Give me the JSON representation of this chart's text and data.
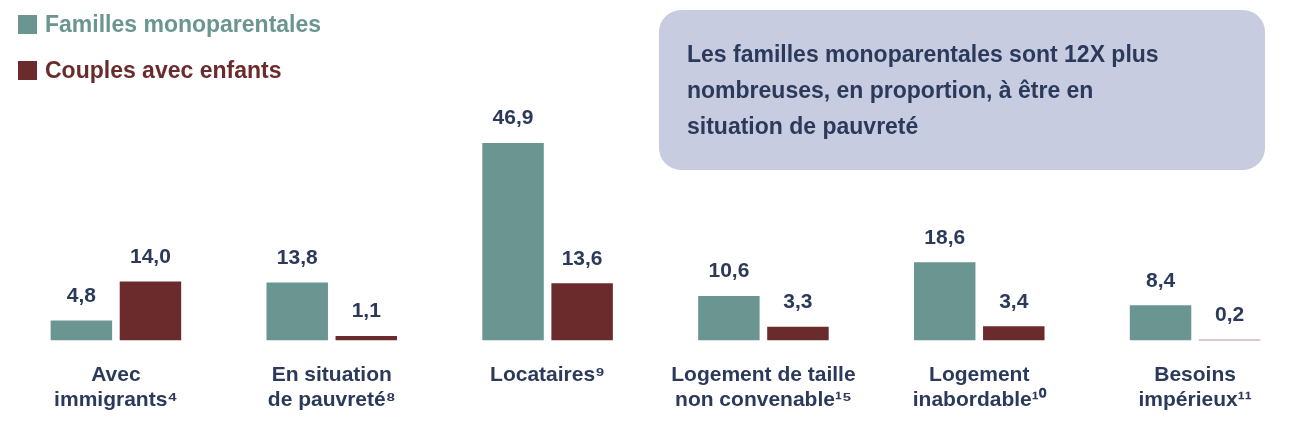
{
  "chart_data": {
    "type": "bar",
    "categories": [
      "Avec\nimmigrants⁴",
      "En situation\nde pauvreté⁸",
      "Locataires⁹",
      "Logement de taille\nnon convenable¹⁵",
      "Logement\ninabordable¹⁰",
      "Besoins\nimpérieux¹¹"
    ],
    "series": [
      {
        "name": "Familles monoparentales",
        "color": "#6a9590",
        "values": [
          4.8,
          13.8,
          46.9,
          10.6,
          18.6,
          8.4
        ],
        "value_labels": [
          "4,8",
          "13,8",
          "46,9",
          "10,6",
          "18,6",
          "8,4"
        ]
      },
      {
        "name": "Couples avec enfants",
        "color": "#6b2b2d",
        "values": [
          14.0,
          1.1,
          13.6,
          3.3,
          3.4,
          0.2
        ],
        "value_labels": [
          "14,0",
          "1,1",
          "13,6",
          "3,3",
          "3,4",
          "0,2"
        ]
      }
    ],
    "relative": false,
    "grid": false,
    "legend": "top left",
    "annotations": [
      "Les familles monoparentales sont 12X plus nombreuses, en proportion, à être en situation de pauvreté"
    ]
  }
}
